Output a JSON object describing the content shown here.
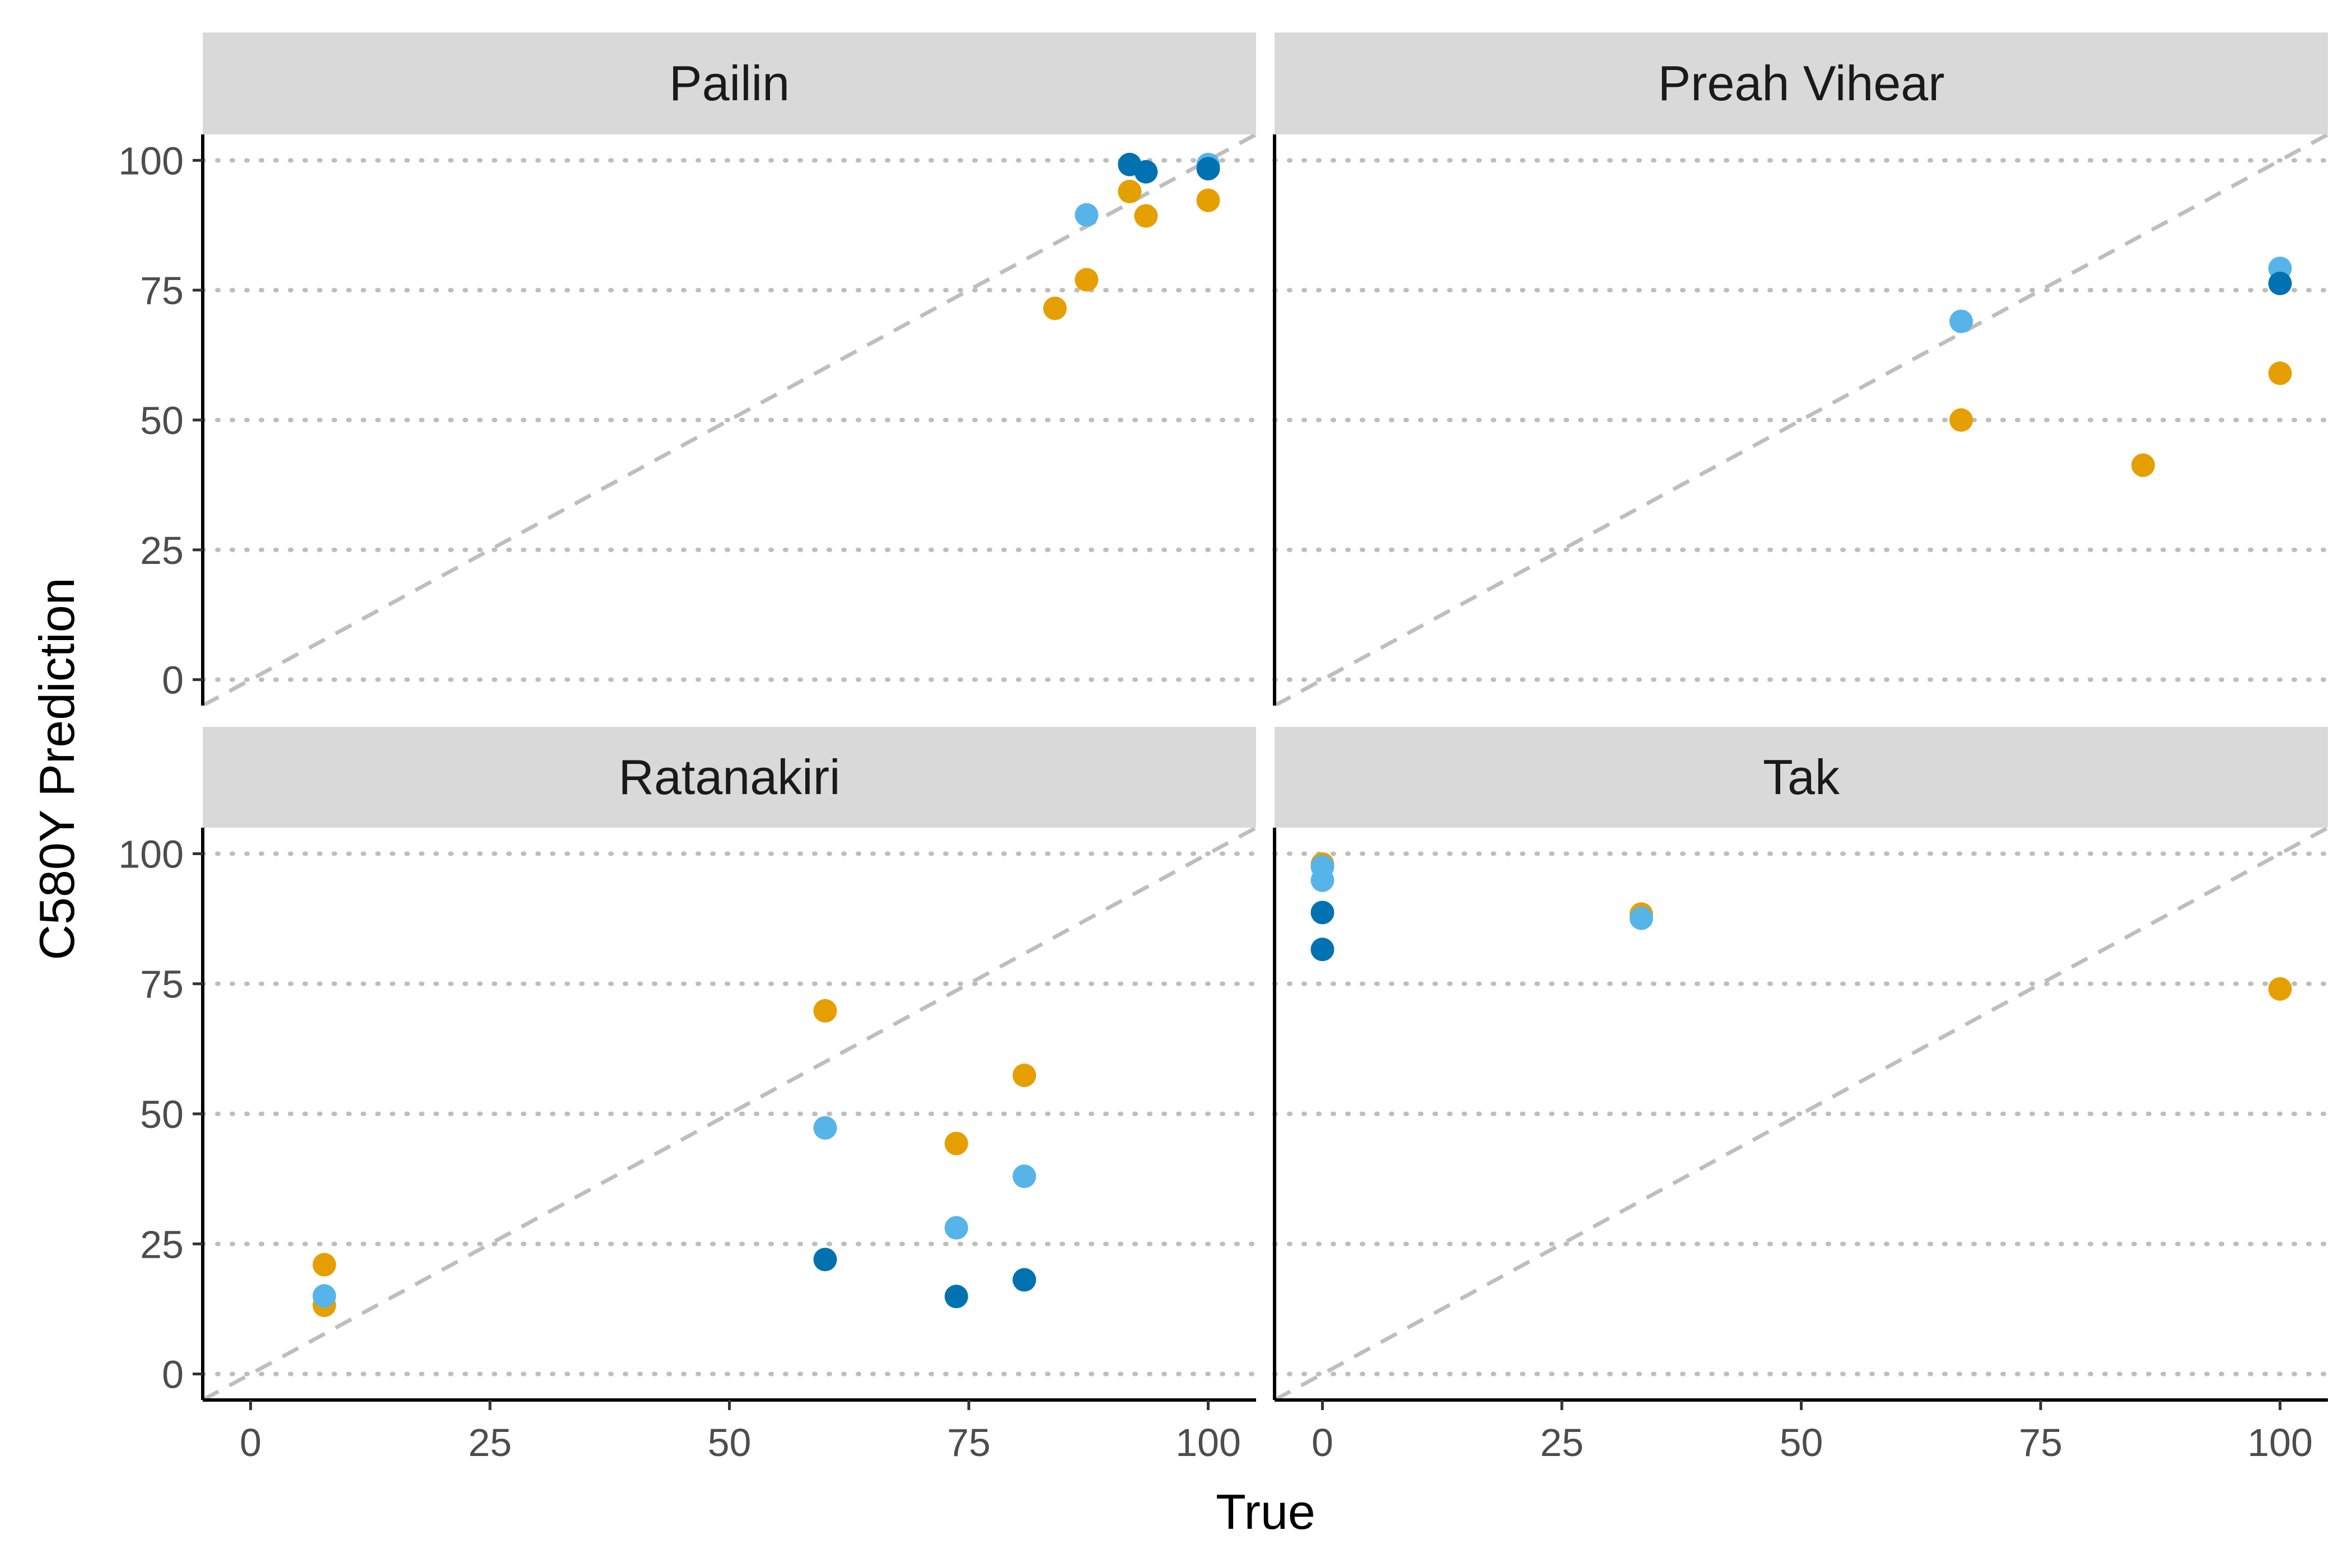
{
  "chart_data": {
    "type": "scatter",
    "xlabel": "True",
    "ylabel": "C580Y Prediction",
    "xlim": [
      -5,
      105
    ],
    "ylim": [
      -5,
      105
    ],
    "x_ticks": [
      "0",
      "25",
      "50",
      "75",
      "100"
    ],
    "y_ticks": [
      "0",
      "25",
      "50",
      "75",
      "100"
    ],
    "grid": "horizontal dotted",
    "reference_line": "y = x (dashed)",
    "colors": {
      "orange": "#E69F00",
      "dark_blue": "#0072B2",
      "light_blue": "#56B4E9",
      "grid": "#bebebe",
      "strip": "#d9d9d9"
    },
    "panels": [
      {
        "title": "Pailin",
        "points": [
          {
            "x": 84,
            "y": 71.5,
            "c": "orange"
          },
          {
            "x": 87.3,
            "y": 77,
            "c": "orange"
          },
          {
            "x": 91.8,
            "y": 94,
            "c": "orange"
          },
          {
            "x": 93.5,
            "y": 89.3,
            "c": "orange"
          },
          {
            "x": 100,
            "y": 92.3,
            "c": "orange"
          },
          {
            "x": 87.3,
            "y": 89.5,
            "c": "light_blue"
          },
          {
            "x": 100,
            "y": 99.2,
            "c": "light_blue"
          },
          {
            "x": 91.8,
            "y": 99.2,
            "c": "dark_blue"
          },
          {
            "x": 93.5,
            "y": 97.8,
            "c": "dark_blue"
          },
          {
            "x": 100,
            "y": 98.4,
            "c": "dark_blue"
          }
        ]
      },
      {
        "title": "Preah Vihear",
        "points": [
          {
            "x": 66.7,
            "y": 50,
            "c": "orange"
          },
          {
            "x": 85.7,
            "y": 41.3,
            "c": "orange"
          },
          {
            "x": 100,
            "y": 59,
            "c": "orange"
          },
          {
            "x": 66.7,
            "y": 69,
            "c": "light_blue"
          },
          {
            "x": 100,
            "y": 79.2,
            "c": "light_blue"
          },
          {
            "x": 100,
            "y": 76.3,
            "c": "dark_blue"
          }
        ]
      },
      {
        "title": "Ratanakiri",
        "points": [
          {
            "x": 7.7,
            "y": 21,
            "c": "orange"
          },
          {
            "x": 7.7,
            "y": 13.2,
            "c": "orange"
          },
          {
            "x": 60,
            "y": 69.8,
            "c": "orange"
          },
          {
            "x": 73.7,
            "y": 44.3,
            "c": "orange"
          },
          {
            "x": 80.8,
            "y": 57.4,
            "c": "orange"
          },
          {
            "x": 7.7,
            "y": 15,
            "c": "light_blue"
          },
          {
            "x": 60,
            "y": 47.3,
            "c": "light_blue"
          },
          {
            "x": 73.7,
            "y": 28.1,
            "c": "light_blue"
          },
          {
            "x": 80.8,
            "y": 38,
            "c": "light_blue"
          },
          {
            "x": 60,
            "y": 22,
            "c": "dark_blue"
          },
          {
            "x": 73.7,
            "y": 14.9,
            "c": "dark_blue"
          },
          {
            "x": 80.8,
            "y": 18.1,
            "c": "dark_blue"
          }
        ]
      },
      {
        "title": "Tak",
        "points": [
          {
            "x": 0,
            "y": 98,
            "c": "orange"
          },
          {
            "x": 33.3,
            "y": 88.4,
            "c": "orange"
          },
          {
            "x": 100,
            "y": 74,
            "c": "orange"
          },
          {
            "x": 0,
            "y": 97.5,
            "c": "light_blue"
          },
          {
            "x": 0,
            "y": 94.9,
            "c": "light_blue"
          },
          {
            "x": 33.3,
            "y": 87.6,
            "c": "light_blue"
          },
          {
            "x": 0,
            "y": 88.7,
            "c": "dark_blue"
          },
          {
            "x": 0,
            "y": 81.6,
            "c": "dark_blue"
          }
        ]
      }
    ]
  }
}
